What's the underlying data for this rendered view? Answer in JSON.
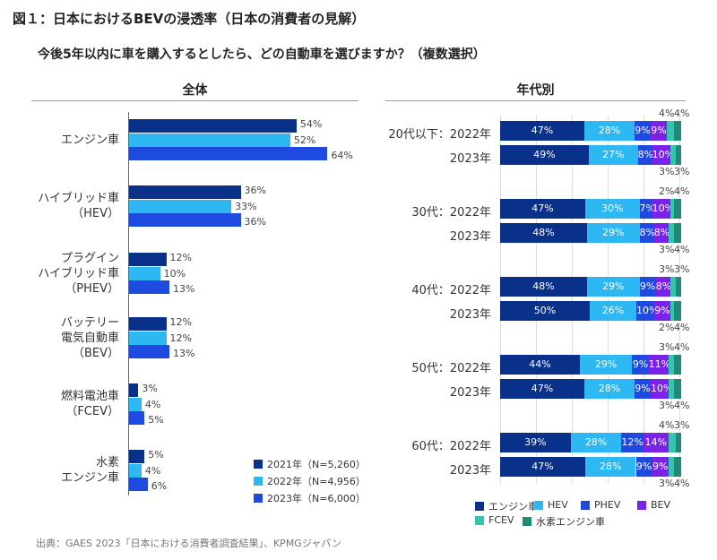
{
  "title": "図１：日本におけるBEVの浸透率（日本の消費者の見解）",
  "subtitle": "今後5年以内に車を購入するとしたら、どの自動車を選びますか？（複数選択）",
  "source": "出典：GAES 2023「日本における消費者調査結果」、KPMGジャパン",
  "colors": {
    "s2021": "#0a3189",
    "s2022": "#2db7f3",
    "s2023": "#1f4ae0",
    "ice": "#0a3189",
    "hev": "#2db7f3",
    "phev": "#1f4ae0",
    "bev": "#7a22e8",
    "fcev": "#35c4b0",
    "h2": "#1e8a78"
  },
  "chart_data": [
    {
      "type": "bar",
      "title": "全体",
      "orientation": "horizontal",
      "categories": [
        [
          "エンジン車"
        ],
        [
          "ハイブリッド車",
          "（HEV）"
        ],
        [
          "プラグイン",
          "ハイブリッド車",
          "（PHEV）"
        ],
        [
          "バッテリー",
          "電気自動車",
          "（BEV）"
        ],
        [
          "燃料電池車",
          "（FCEV）"
        ],
        [
          "水素",
          "エンジン車"
        ]
      ],
      "series": [
        {
          "name": "2021年（N=5,260）",
          "values": [
            54,
            36,
            12,
            12,
            3,
            5
          ]
        },
        {
          "name": "2022年（N=4,956）",
          "values": [
            52,
            33,
            10,
            12,
            4,
            4
          ]
        },
        {
          "name": "2023年（N=6,000）",
          "values": [
            64,
            36,
            13,
            13,
            5,
            6
          ]
        }
      ],
      "unit": "%",
      "legend": "bottom-right"
    },
    {
      "type": "bar",
      "stacked": true,
      "title": "年代別",
      "orientation": "horizontal",
      "segments": [
        "エンジン車",
        "HEV",
        "PHEV",
        "BEV",
        "FCEV",
        "水素エンジン車"
      ],
      "groups": [
        {
          "label": "20代以下：2022年",
          "label2": "2023年",
          "rows": [
            [
              47,
              28,
              9,
              9,
              4,
              4
            ],
            [
              49,
              27,
              8,
              10,
              3,
              3
            ]
          ]
        },
        {
          "label": "30代：2022年",
          "label2": "2023年",
          "rows": [
            [
              47,
              30,
              7,
              10,
              2,
              4
            ],
            [
              48,
              29,
              8,
              8,
              3,
              4
            ]
          ]
        },
        {
          "label": "40代：2022年",
          "label2": "2023年",
          "rows": [
            [
              48,
              29,
              9,
              8,
              3,
              3
            ],
            [
              50,
              26,
              10,
              9,
              2,
              4
            ]
          ]
        },
        {
          "label": "50代：2022年",
          "label2": "2023年",
          "rows": [
            [
              44,
              29,
              9,
              11,
              3,
              4
            ],
            [
              47,
              28,
              9,
              10,
              3,
              4
            ]
          ]
        },
        {
          "label": "60代：2022年",
          "label2": "2023年",
          "rows": [
            [
              39,
              28,
              12,
              14,
              4,
              3
            ],
            [
              47,
              28,
              9,
              9,
              3,
              4
            ]
          ]
        }
      ],
      "unit": "%",
      "legend": "bottom"
    }
  ]
}
